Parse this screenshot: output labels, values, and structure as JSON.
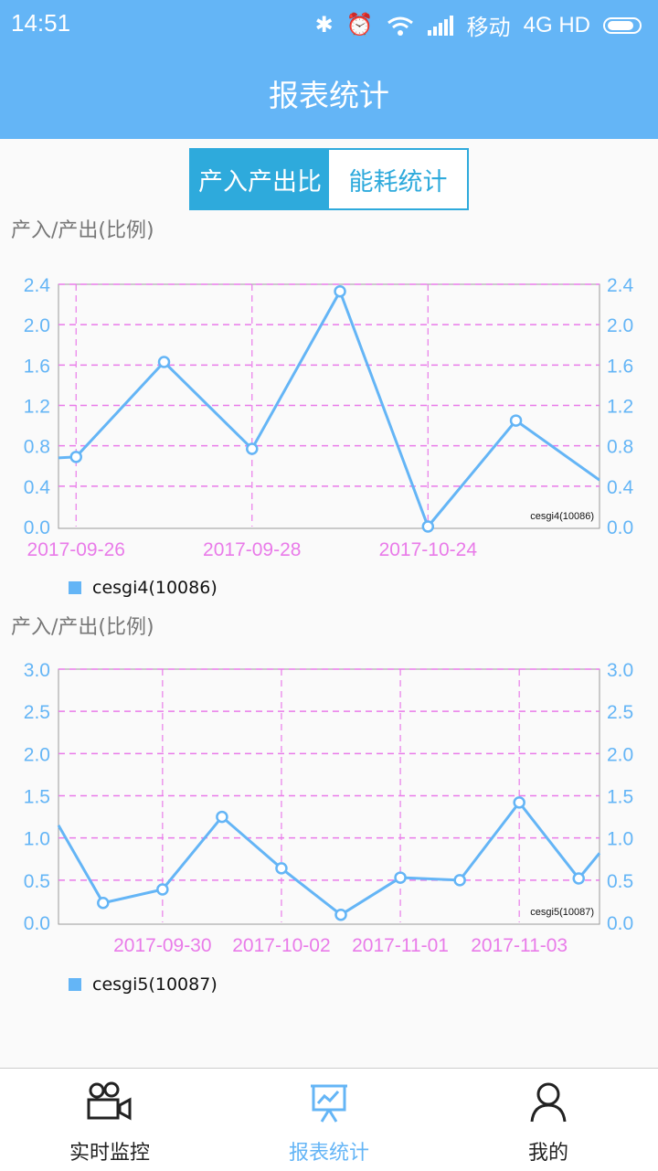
{
  "status_bar": {
    "time": "14:51",
    "carrier": "移动",
    "network": "4G HD"
  },
  "app_bar": {
    "title": "报表统计"
  },
  "segment": {
    "tabs": [
      {
        "label": "产入产出比",
        "active": true
      },
      {
        "label": "能耗统计",
        "active": false
      }
    ]
  },
  "charts": [
    {
      "title": "产入/产出(比例)",
      "legend": "cesgi4(10086)",
      "inner_label": "cesgi4(10086)"
    },
    {
      "title": "产入/产出(比例)",
      "legend": "cesgi5(10087)",
      "inner_label": "cesgi5(10087)"
    }
  ],
  "chart_data": [
    {
      "type": "line",
      "ylabel": "产入/产出(比例)",
      "ylim": [
        0,
        2.4
      ],
      "y_ticks": [
        0.0,
        0.4,
        0.8,
        1.2,
        1.6,
        2.0,
        2.4
      ],
      "x_tick_labels": [
        {
          "label": "2017-09-26",
          "x": 0.2
        },
        {
          "label": "2017-09-28",
          "x": 2.2
        },
        {
          "label": "2017-10-24",
          "x": 4.2
        }
      ],
      "xlim": [
        0,
        6.15
      ],
      "series": [
        {
          "name": "cesgi4(10086)",
          "x": [
            0.2,
            1.2,
            2.2,
            3.2,
            4.2,
            5.2
          ],
          "values": [
            0.69,
            1.63,
            0.77,
            2.33,
            0.0,
            1.05
          ]
        }
      ],
      "edge_values": {
        "left": 0.68,
        "right": 0.46
      },
      "grid": true,
      "color": "#64b5f6",
      "grid_color": "#e97be9"
    },
    {
      "type": "line",
      "ylabel": "产入/产出(比例)",
      "ylim": [
        0,
        3.0
      ],
      "y_ticks": [
        0.0,
        0.5,
        1.0,
        1.5,
        2.0,
        2.5,
        3.0
      ],
      "x_tick_labels": [
        {
          "label": "2017-09-30",
          "x": 1.75
        },
        {
          "label": "2017-10-02",
          "x": 3.75
        },
        {
          "label": "2017-11-01",
          "x": 5.75
        },
        {
          "label": "2017-11-03",
          "x": 7.75
        }
      ],
      "xlim": [
        0,
        9.1
      ],
      "series": [
        {
          "name": "cesgi5(10087)",
          "x": [
            0.75,
            1.75,
            2.75,
            3.75,
            4.75,
            5.75,
            6.75,
            7.75,
            8.75
          ],
          "values": [
            0.23,
            0.39,
            1.25,
            0.64,
            0.09,
            0.53,
            0.5,
            1.42,
            0.52
          ]
        }
      ],
      "edge_values": {
        "left": 1.15,
        "right": 0.82
      },
      "grid": true,
      "color": "#64b5f6",
      "grid_color": "#e97be9"
    }
  ],
  "bottom_nav": {
    "items": [
      {
        "label": "实时监控",
        "icon": "video-camera-icon",
        "active": false
      },
      {
        "label": "报表统计",
        "icon": "report-chart-icon",
        "active": true
      },
      {
        "label": "我的",
        "icon": "person-icon",
        "active": false
      }
    ]
  }
}
